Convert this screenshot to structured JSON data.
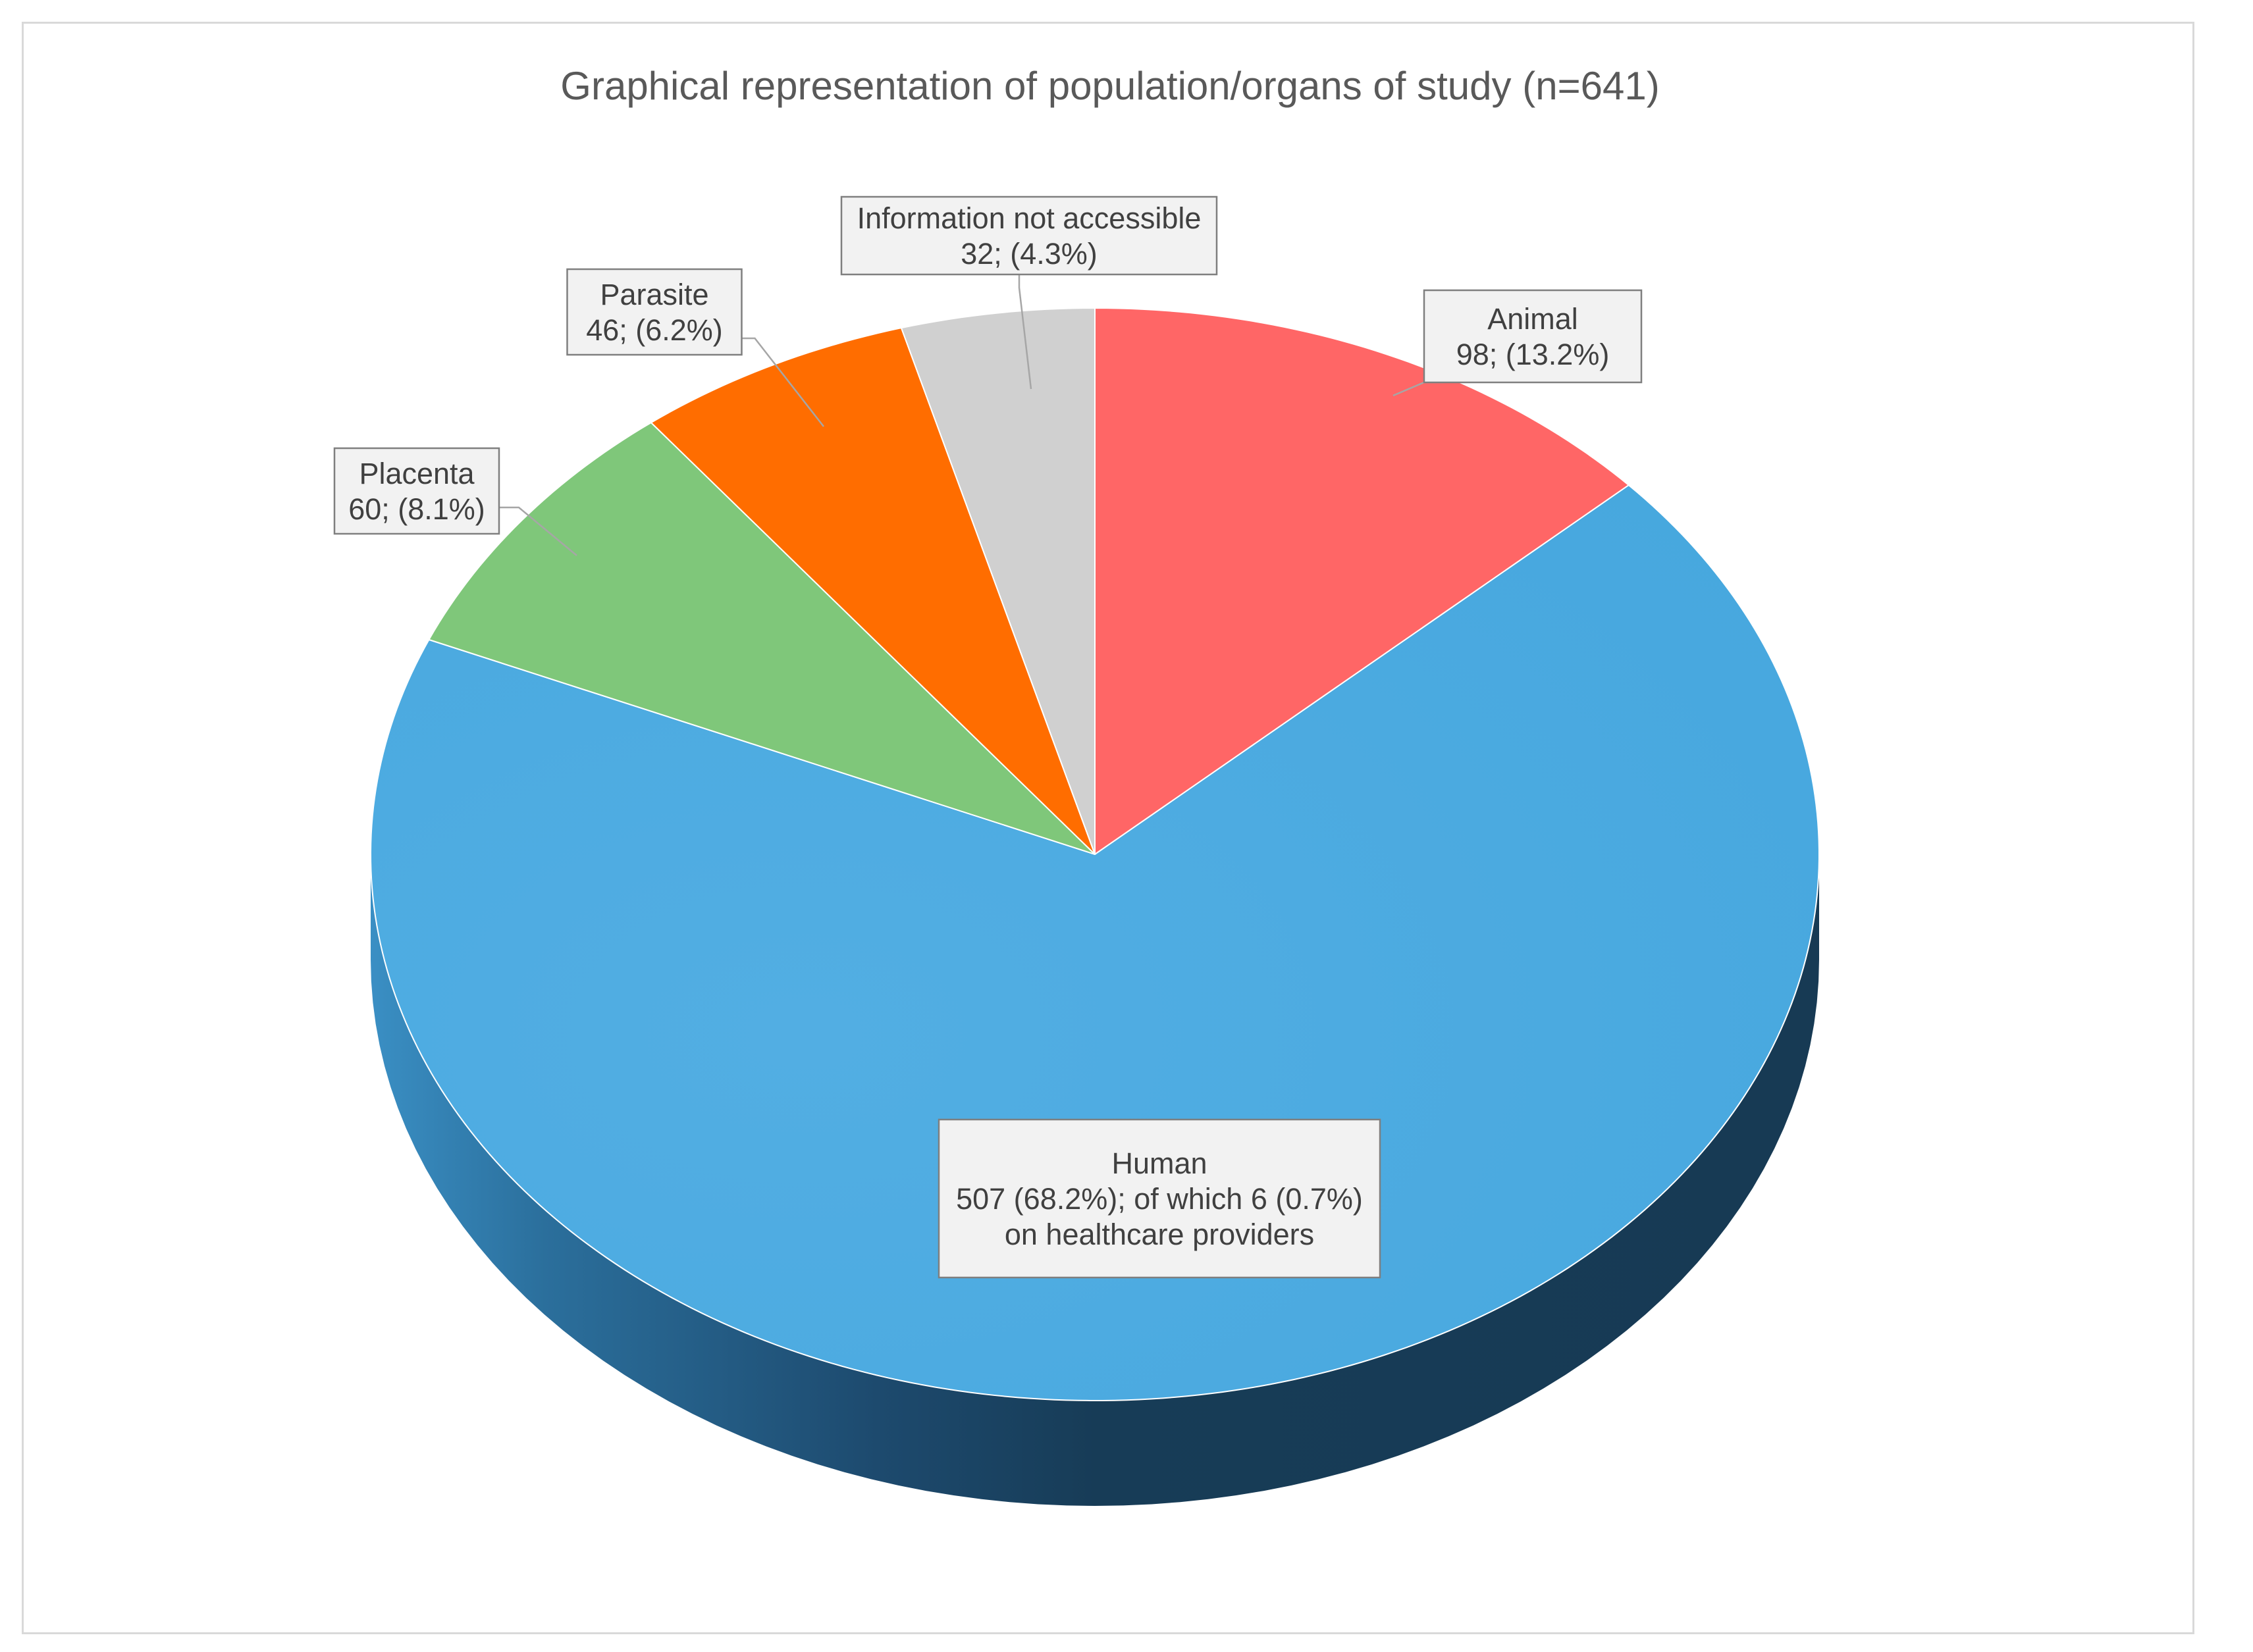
{
  "chart_data": {
    "type": "pie",
    "title": "Graphical representation of population/organs of study (n=641)",
    "three_d": true,
    "start_angle_deg": 0,
    "direction": "clockwise",
    "slices": [
      {
        "name": "Animal",
        "value": 98,
        "percent": "13.2%",
        "color": "#ff6666",
        "label_lines": [
          "Animal",
          "98; (13.2%)"
        ]
      },
      {
        "name": "Human",
        "value": 507,
        "percent": "68.2%",
        "color": "#4aabe0",
        "side_color": "#173c57",
        "label_lines": [
          "Human",
          "507 (68.2%); of which 6 (0.7%)",
          "on healthcare providers"
        ]
      },
      {
        "name": "Placenta",
        "value": 60,
        "percent": "8.1%",
        "color": "#7fc77a",
        "label_lines": [
          "Placenta",
          "60; (8.1%)"
        ]
      },
      {
        "name": "Parasite",
        "value": 46,
        "percent": "6.2%",
        "color": "#ff6d00",
        "label_lines": [
          "Parasite",
          "46; (6.2%)"
        ]
      },
      {
        "name": "Information not accessible",
        "value": 32,
        "percent": "4.3%",
        "color": "#d0d0d0",
        "label_lines": [
          "Information not accessible",
          "32; (4.3%)"
        ]
      }
    ],
    "legend": "none",
    "data_labels": "callout"
  }
}
